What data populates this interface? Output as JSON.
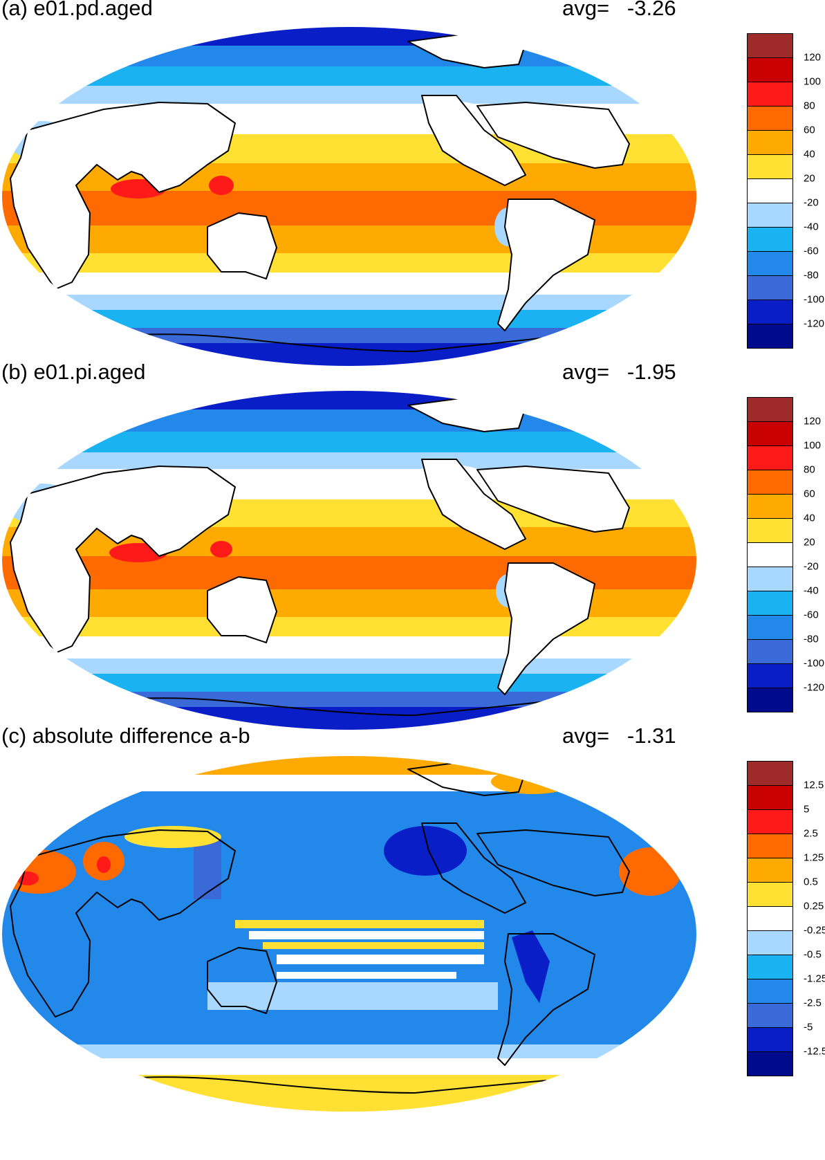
{
  "panels": [
    {
      "title": "(a) e01.pd.aged",
      "avg": "avg=   -3.26",
      "colorbar": {
        "colors": [
          "#9e2a2a",
          "#c80000",
          "#ff1a1a",
          "#ff6a00",
          "#ffaa00",
          "#ffe033",
          "#ffffff",
          "#a8d8ff",
          "#1ab2f0",
          "#2288ea",
          "#3a6ad8",
          "#0a1ec8",
          "#000a8c"
        ],
        "labels": [
          "120",
          "100",
          "80",
          "60",
          "40",
          "20",
          "-20",
          "-40",
          "-60",
          "-80",
          "-100",
          "-120"
        ]
      }
    },
    {
      "title": "(b) e01.pi.aged",
      "avg": "avg=   -1.95",
      "colorbar": {
        "colors": [
          "#9e2a2a",
          "#c80000",
          "#ff1a1a",
          "#ff6a00",
          "#ffaa00",
          "#ffe033",
          "#ffffff",
          "#a8d8ff",
          "#1ab2f0",
          "#2288ea",
          "#3a6ad8",
          "#0a1ec8",
          "#000a8c"
        ],
        "labels": [
          "120",
          "100",
          "80",
          "60",
          "40",
          "20",
          "-20",
          "-40",
          "-60",
          "-80",
          "-100",
          "-120"
        ]
      }
    },
    {
      "title": "(c) absolute difference a-b",
      "avg": "avg=   -1.31",
      "colorbar": {
        "colors": [
          "#9e2a2a",
          "#c80000",
          "#ff1a1a",
          "#ff6a00",
          "#ffaa00",
          "#ffe033",
          "#ffffff",
          "#a8d8ff",
          "#1ab2f0",
          "#2288ea",
          "#3a6ad8",
          "#0a1ec8",
          "#000a8c"
        ],
        "labels": [
          "12.5",
          "5",
          "2.5",
          "1.25",
          "0.5",
          "0.25",
          "-0.25",
          "-0.5",
          "-1.25",
          "-2.5",
          "-5",
          "-12.5"
        ]
      }
    }
  ]
}
